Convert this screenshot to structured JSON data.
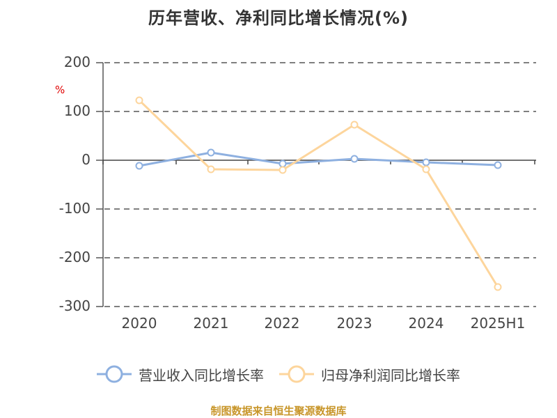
{
  "title": "历年营收、净利同比增长情况(%)",
  "unit": "%",
  "source": "制图数据来自恒生聚源数据库",
  "colors": {
    "revenue": "#8eb0e0",
    "profit": "#fdd59c",
    "grid": "#555555",
    "axis": "#444444",
    "unit": "#e00000",
    "source": "#c8962a"
  },
  "y_ticks": [
    "200",
    "100",
    "0",
    "-100",
    "-200",
    "-300"
  ],
  "x_ticks": [
    "2020",
    "2021",
    "2022",
    "2023",
    "2024",
    "2025H1"
  ],
  "legend": [
    {
      "label": "营业收入同比增长率",
      "color": "#8eb0e0"
    },
    {
      "label": "归母净利润同比增长率",
      "color": "#fdd59c"
    }
  ],
  "chart_data": {
    "type": "line",
    "title": "历年营收、净利同比增长情况(%)",
    "xlabel": "",
    "ylabel": "%",
    "categories": [
      "2020",
      "2021",
      "2022",
      "2023",
      "2024",
      "2025H1"
    ],
    "series": [
      {
        "name": "营业收入同比增长率",
        "values": [
          -11.4,
          15.7,
          -7.1,
          2.9,
          -4.3,
          -10.0
        ],
        "color": "#8eb0e0"
      },
      {
        "name": "归母净利润同比增长率",
        "values": [
          122.9,
          -18.6,
          -20.0,
          72.9,
          -18.6,
          -260.0
        ],
        "color": "#fdd59c"
      }
    ],
    "ylim": [
      -300,
      200
    ],
    "y_ticks": [
      200,
      100,
      0,
      -100,
      -200,
      -300
    ],
    "grid": true,
    "legend_position": "bottom"
  }
}
